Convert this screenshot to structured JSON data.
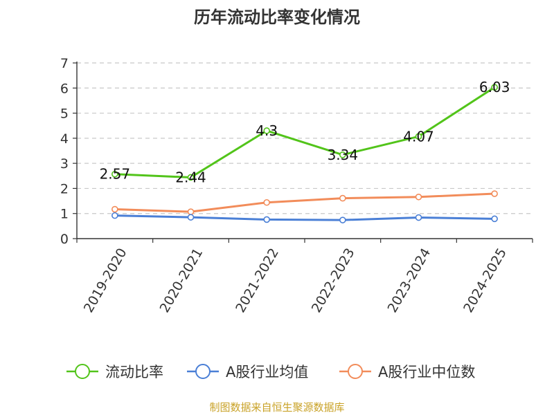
{
  "chart_data": {
    "type": "line",
    "title": "历年流动比率变化情况",
    "categories": [
      "2019-2020",
      "2020-2021",
      "2021-2022",
      "2022-2023",
      "2023-2024",
      "2024-2025"
    ],
    "ylim": [
      0,
      7
    ],
    "yticks": [
      "0",
      "1",
      "2",
      "3",
      "4",
      "5",
      "6",
      "7"
    ],
    "grid": true,
    "legend_position": "bottom",
    "series": [
      {
        "name": "流动比率",
        "color": "#52c41a",
        "values": [
          2.57,
          2.44,
          4.3,
          3.34,
          4.07,
          6.03
        ],
        "labels": [
          "2.57",
          "2.44",
          "4.3",
          "3.34",
          "4.07",
          "6.03"
        ]
      },
      {
        "name": "A股行业均值",
        "color": "#4a7fd6",
        "values": [
          0.92,
          0.85,
          0.76,
          0.74,
          0.84,
          0.79
        ]
      },
      {
        "name": "A股行业中位数",
        "color": "#f28c5a",
        "values": [
          1.17,
          1.07,
          1.44,
          1.61,
          1.66,
          1.79
        ]
      }
    ],
    "source": "制图数据来自恒生聚源数据库"
  }
}
